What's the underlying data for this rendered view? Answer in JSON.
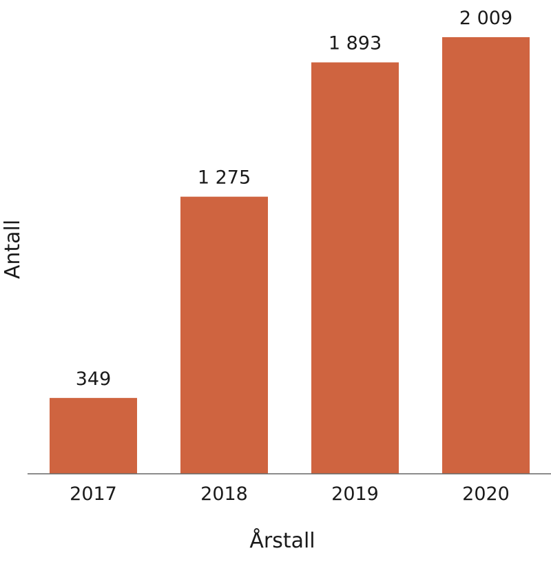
{
  "chart_data": {
    "type": "bar",
    "title": "",
    "xlabel": "Årstall",
    "ylabel": "Antall",
    "categories": [
      "2017",
      "2018",
      "2019",
      "2020"
    ],
    "values": [
      349,
      1275,
      1893,
      2009
    ],
    "value_labels": [
      "349",
      "1 275",
      "1 893",
      "2 009"
    ],
    "ylim": [
      0,
      2180
    ],
    "grid": false,
    "legend": "none",
    "bar_color": "#CF6440",
    "axis_color": "#666666"
  }
}
